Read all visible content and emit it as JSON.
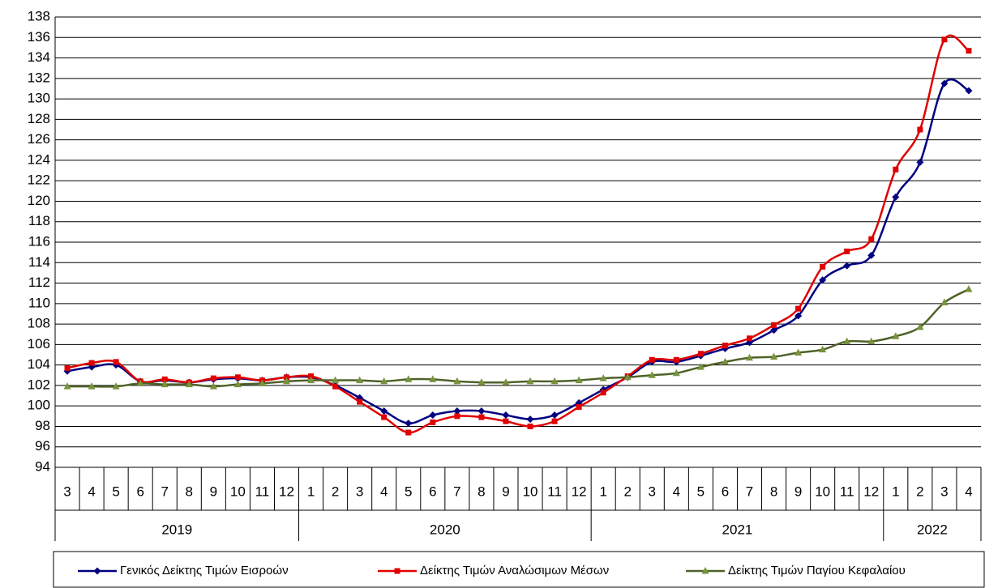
{
  "chart_data": {
    "type": "line",
    "category_groups": [
      {
        "name": "2019",
        "categories": [
          "3",
          "4",
          "5",
          "6",
          "7",
          "8",
          "9",
          "10",
          "11",
          "12"
        ]
      },
      {
        "name": "2020",
        "categories": [
          "1",
          "2",
          "3",
          "4",
          "5",
          "6",
          "7",
          "8",
          "9",
          "10",
          "11",
          "12"
        ]
      },
      {
        "name": "2021",
        "categories": [
          "1",
          "2",
          "3",
          "4",
          "5",
          "6",
          "7",
          "8",
          "9",
          "10",
          "11",
          "12"
        ]
      },
      {
        "name": "2022",
        "categories": [
          "1",
          "2",
          "3",
          "4"
        ]
      }
    ],
    "series": [
      {
        "name": "Γενικός Δείκτης Τιμών Εισροών",
        "color": "#000080",
        "marker": "diamond",
        "values": [
          103.4,
          103.8,
          104.0,
          102.4,
          102.5,
          102.3,
          102.6,
          102.7,
          102.5,
          102.8,
          102.8,
          102.0,
          100.8,
          99.5,
          98.3,
          99.1,
          99.5,
          99.5,
          99.1,
          98.7,
          99.1,
          100.3,
          101.6,
          102.8,
          104.3,
          104.3,
          104.9,
          105.6,
          106.2,
          107.4,
          108.8,
          112.3,
          113.7,
          114.7,
          120.4,
          123.8,
          131.5,
          130.8
        ]
      },
      {
        "name": "Δείκτης Τιμών Αναλώσιμων Μέσων",
        "color": "#e00000",
        "marker": "square",
        "values": [
          103.7,
          104.2,
          104.3,
          102.4,
          102.6,
          102.3,
          102.7,
          102.8,
          102.5,
          102.8,
          102.9,
          101.9,
          100.4,
          98.9,
          97.4,
          98.4,
          99.0,
          98.9,
          98.5,
          98.0,
          98.5,
          99.9,
          101.3,
          102.9,
          104.5,
          104.5,
          105.1,
          105.9,
          106.6,
          107.9,
          109.5,
          113.6,
          115.1,
          116.3,
          123.1,
          127.0,
          135.8,
          134.7
        ]
      },
      {
        "name": "Δείκτης Τιμών Παγίου Κεφαλαίου",
        "color": "#4f6228",
        "marker": "triangle",
        "marker_color": "#77933c",
        "values": [
          101.9,
          101.9,
          101.9,
          102.2,
          102.1,
          102.1,
          101.9,
          102.1,
          102.2,
          102.4,
          102.5,
          102.5,
          102.5,
          102.4,
          102.6,
          102.6,
          102.4,
          102.3,
          102.3,
          102.4,
          102.4,
          102.5,
          102.7,
          102.8,
          103.0,
          103.2,
          103.8,
          104.3,
          104.7,
          104.8,
          105.2,
          105.5,
          106.3,
          106.3,
          106.8,
          107.7,
          110.1,
          111.4
        ]
      }
    ],
    "ylim": [
      94,
      138
    ],
    "yticks": [
      94,
      96,
      98,
      100,
      102,
      104,
      106,
      108,
      110,
      112,
      114,
      116,
      118,
      120,
      122,
      124,
      126,
      128,
      130,
      132,
      134,
      136,
      138
    ],
    "grid": true,
    "smooth": true,
    "legend": "bottom"
  }
}
